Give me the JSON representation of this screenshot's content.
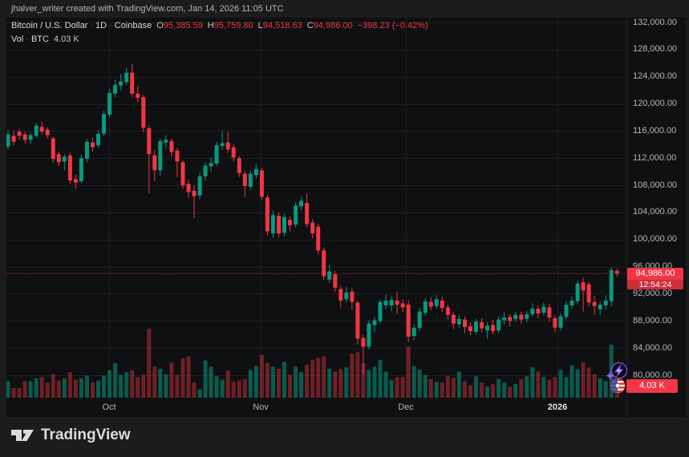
{
  "watermark": "jhalver_writer created with TradingView.com, Jan 14, 2026 11:05 UTC",
  "legend": {
    "symbol": "Bitcoin / U.S. Dollar",
    "sep": "·",
    "interval": "1D",
    "exchange": "Coinbase",
    "o_label": "O",
    "o": "95,385.59",
    "h_label": "H",
    "h": "95,759.80",
    "l_label": "L",
    "l": "94,518.63",
    "c_label": "C",
    "c": "94,986.00",
    "change": "−398.23 (−0.42%)",
    "vol_label": "Vol",
    "vol_unit": "BTC",
    "vol_value": "4.03 K"
  },
  "price_label": {
    "price": "94,986.00",
    "countdown": "12:54:24"
  },
  "volume_label": "4.03 K",
  "footer": {
    "brand": "TradingView"
  },
  "colors": {
    "up": "#089981",
    "down": "#f23645",
    "accent_red": "#f23645",
    "grid": "#1d1f21",
    "panel_bg": "#0f1011",
    "frame_bg": "#1c1c1d",
    "axis_text": "#b4b6ba"
  },
  "x_axis": {
    "labels": [
      {
        "text": "Oct",
        "x": 136
      },
      {
        "text": "Nov",
        "x": 325
      },
      {
        "text": "Dec",
        "x": 506
      },
      {
        "text": "2026",
        "x": 695,
        "year": true
      }
    ]
  },
  "y_axis": {
    "ticks": [
      132000,
      128000,
      124000,
      120000,
      116000,
      112000,
      108000,
      104000,
      100000,
      96000,
      92000,
      88000,
      84000,
      80000
    ]
  },
  "chart_data": {
    "type": "candlestick_with_volume",
    "symbol": "BTC/USD",
    "interval": "1D",
    "price_line": 94986.0,
    "ylim": [
      78000,
      133000
    ],
    "candles": [
      [
        111000,
        115700,
        110400,
        115200,
        0.3
      ],
      [
        113700,
        116200,
        113300,
        115500,
        0.24
      ],
      [
        115300,
        116000,
        113900,
        114400,
        0.14
      ],
      [
        115900,
        116300,
        114700,
        115300,
        0.14
      ],
      [
        115500,
        115900,
        114200,
        114700,
        0.24
      ],
      [
        114700,
        115800,
        114100,
        115400,
        0.24
      ],
      [
        115300,
        117200,
        115000,
        116800,
        0.28
      ],
      [
        116600,
        117400,
        115500,
        115900,
        0.3
      ],
      [
        116200,
        116600,
        114900,
        115400,
        0.22
      ],
      [
        114900,
        115200,
        111300,
        111900,
        0.34
      ],
      [
        112600,
        113000,
        110800,
        111400,
        0.25
      ],
      [
        111500,
        112600,
        110200,
        112200,
        0.28
      ],
      [
        112400,
        112800,
        108200,
        108700,
        0.37
      ],
      [
        108900,
        109600,
        107500,
        108400,
        0.26
      ],
      [
        108600,
        112500,
        108300,
        112000,
        0.28
      ],
      [
        111900,
        114900,
        111400,
        114400,
        0.32
      ],
      [
        114300,
        115000,
        113000,
        113600,
        0.22
      ],
      [
        113900,
        116100,
        113500,
        115600,
        0.25
      ],
      [
        115600,
        119000,
        115200,
        118500,
        0.32
      ],
      [
        118400,
        122200,
        118000,
        121600,
        0.4
      ],
      [
        121500,
        123600,
        121000,
        122800,
        0.5
      ],
      [
        122700,
        124400,
        122000,
        123300,
        0.33
      ],
      [
        123200,
        125300,
        122800,
        124600,
        0.37
      ],
      [
        124600,
        125900,
        121000,
        121500,
        0.4
      ],
      [
        121500,
        122600,
        120200,
        120900,
        0.3
      ],
      [
        121000,
        121300,
        115800,
        116500,
        0.33
      ],
      [
        116400,
        116800,
        106800,
        112600,
        1.0
      ],
      [
        112400,
        113200,
        108600,
        110200,
        0.45
      ],
      [
        110200,
        114900,
        109400,
        114500,
        0.42
      ],
      [
        114300,
        115400,
        113400,
        114700,
        0.34
      ],
      [
        114500,
        114900,
        112200,
        112900,
        0.51
      ],
      [
        113100,
        113500,
        109200,
        111500,
        0.33
      ],
      [
        111400,
        111700,
        107500,
        108000,
        0.57
      ],
      [
        108200,
        108800,
        106200,
        107000,
        0.6
      ],
      [
        107200,
        108000,
        103200,
        106400,
        0.22
      ],
      [
        106500,
        109800,
        106000,
        109300,
        0.12
      ],
      [
        109300,
        111400,
        108700,
        110900,
        0.54
      ],
      [
        110800,
        112100,
        110000,
        111300,
        0.45
      ],
      [
        111200,
        114400,
        110800,
        113900,
        0.31
      ],
      [
        113800,
        116000,
        113200,
        114200,
        0.26
      ],
      [
        114300,
        115900,
        112800,
        113300,
        0.4
      ],
      [
        113600,
        114000,
        111500,
        112100,
        0.23
      ],
      [
        112000,
        112300,
        109200,
        109800,
        0.25
      ],
      [
        109700,
        110100,
        106300,
        107900,
        0.27
      ],
      [
        107800,
        110200,
        107300,
        109700,
        0.4
      ],
      [
        109500,
        111200,
        109000,
        110400,
        0.46
      ],
      [
        110200,
        110500,
        105800,
        106300,
        0.62
      ],
      [
        106200,
        106600,
        100600,
        101200,
        0.5
      ],
      [
        100900,
        104300,
        100200,
        103600,
        0.45
      ],
      [
        103500,
        104000,
        100300,
        100900,
        0.42
      ],
      [
        101000,
        103800,
        100500,
        103300,
        0.52
      ],
      [
        102900,
        103400,
        101200,
        102100,
        0.33
      ],
      [
        102200,
        105500,
        101800,
        105000,
        0.45
      ],
      [
        104900,
        106300,
        104300,
        105700,
        0.37
      ],
      [
        105400,
        106800,
        101800,
        102300,
        0.48
      ],
      [
        102500,
        103000,
        100200,
        100900,
        0.55
      ],
      [
        101900,
        102300,
        97800,
        98400,
        0.58
      ],
      [
        98400,
        98800,
        94000,
        94600,
        0.6
      ],
      [
        94100,
        96300,
        93600,
        95300,
        0.42
      ],
      [
        94900,
        95400,
        92300,
        92900,
        0.38
      ],
      [
        92700,
        93200,
        90000,
        91000,
        0.42
      ],
      [
        91200,
        93000,
        90700,
        92200,
        0.44
      ],
      [
        92300,
        92800,
        89600,
        90800,
        0.64
      ],
      [
        90700,
        91000,
        84500,
        85400,
        0.66
      ],
      [
        85500,
        86000,
        80100,
        84200,
        0.5
      ],
      [
        84200,
        88100,
        83800,
        87600,
        0.4
      ],
      [
        87400,
        88600,
        86300,
        88100,
        0.45
      ],
      [
        88000,
        91200,
        87600,
        90800,
        0.55
      ],
      [
        90300,
        91900,
        89800,
        91000,
        0.38
      ],
      [
        90300,
        91600,
        89400,
        91100,
        0.26
      ],
      [
        91000,
        92300,
        89000,
        90400,
        0.3
      ],
      [
        90600,
        91200,
        89300,
        90000,
        0.3
      ],
      [
        90400,
        91000,
        84900,
        85700,
        0.74
      ],
      [
        85800,
        87600,
        85200,
        87000,
        0.46
      ],
      [
        87000,
        89900,
        86600,
        89400,
        0.41
      ],
      [
        89200,
        91400,
        88800,
        90900,
        0.33
      ],
      [
        90800,
        91500,
        89600,
        90100,
        0.27
      ],
      [
        90200,
        91800,
        89800,
        91200,
        0.23
      ],
      [
        91000,
        91600,
        89300,
        89900,
        0.22
      ],
      [
        90000,
        90400,
        88200,
        88900,
        0.32
      ],
      [
        88900,
        89300,
        86800,
        87600,
        0.29
      ],
      [
        87500,
        88900,
        86900,
        88300,
        0.38
      ],
      [
        88200,
        88700,
        86200,
        87100,
        0.24
      ],
      [
        87200,
        87800,
        85900,
        86500,
        0.18
      ],
      [
        86400,
        88300,
        86000,
        87900,
        0.31
      ],
      [
        87800,
        88400,
        86300,
        86900,
        0.22
      ],
      [
        86600,
        87800,
        85400,
        87300,
        0.16
      ],
      [
        87400,
        88200,
        86000,
        86500,
        0.2
      ],
      [
        86600,
        88700,
        86200,
        88200,
        0.27
      ],
      [
        88100,
        89300,
        87500,
        88500,
        0.22
      ],
      [
        88600,
        89000,
        87200,
        88000,
        0.16
      ],
      [
        88300,
        89400,
        87900,
        88900,
        0.2
      ],
      [
        88900,
        89300,
        87600,
        88200,
        0.27
      ],
      [
        88300,
        89500,
        87800,
        89000,
        0.31
      ],
      [
        89000,
        90600,
        88600,
        89800,
        0.44
      ],
      [
        89800,
        90300,
        88400,
        89100,
        0.38
      ],
      [
        89200,
        90700,
        88800,
        90100,
        0.3
      ],
      [
        90000,
        90500,
        87900,
        88500,
        0.26
      ],
      [
        88400,
        88800,
        86300,
        87000,
        0.3
      ],
      [
        87000,
        89200,
        86600,
        88700,
        0.4
      ],
      [
        88600,
        90900,
        88200,
        90400,
        0.3
      ],
      [
        90300,
        91600,
        89800,
        91000,
        0.47
      ],
      [
        90900,
        93900,
        90500,
        93500,
        0.41
      ],
      [
        93700,
        94400,
        89400,
        92500,
        0.51
      ],
      [
        93400,
        93800,
        90200,
        90700,
        0.44
      ],
      [
        90800,
        91700,
        88900,
        90200,
        0.34
      ],
      [
        89700,
        90900,
        88900,
        90400,
        0.28
      ],
      [
        90300,
        91800,
        89600,
        91000,
        0.24
      ],
      [
        90900,
        95900,
        90200,
        95500,
        0.77
      ],
      [
        95385.59,
        95759.8,
        94518.63,
        94986.0,
        0.19
      ]
    ]
  }
}
